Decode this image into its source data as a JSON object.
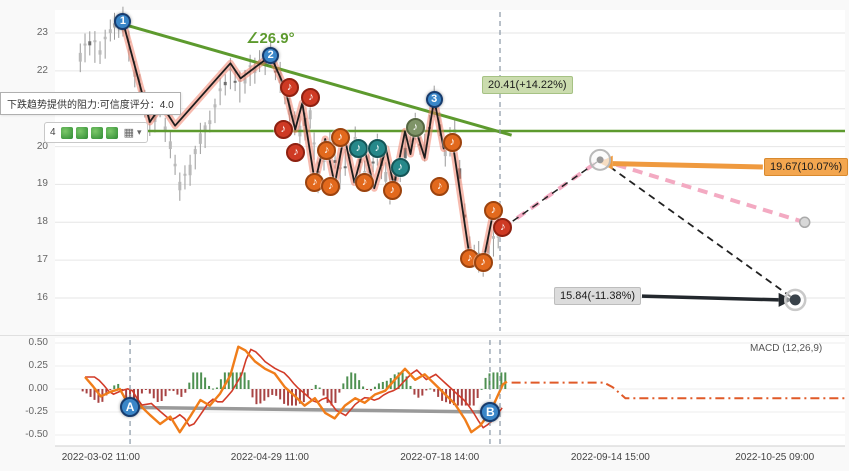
{
  "colors": {
    "green_line": "#5d9a2e",
    "zigzag_glow": "rgba(240,120,95,0.5)",
    "zigzag": "#1c1c1c",
    "forecast_pink": "#f3aac2",
    "forecast_black": "#222222",
    "orange_arrow": "#ef9a3f",
    "black_arrow": "#23282d",
    "macd_line": "#f07d1a",
    "macd_signal": "#d23b28",
    "hist_pos": "#2f7d33",
    "hist_neg": "#992222",
    "vline": "#8a97a5",
    "grid": "#e6e6e6"
  },
  "annotations": {
    "tooltip": "下跌趋势提供的阻力:可信度评分：4.0",
    "angle": "∠26.9°",
    "label_green": "20.41(+14.22%)",
    "label_orange": "19.67(10.07%)",
    "label_gray": "15.84(-11.38%)"
  },
  "toolbar": {
    "count": "4",
    "grid_glyph": "▦",
    "caret_glyph": "▾"
  },
  "icons": {
    "marker_glyph": "♪"
  },
  "chart_data": {
    "type": "candlestick+line",
    "x_axis": {
      "labels": [
        "2022-03-02 11:00",
        "2022-04-29 11:00",
        "2022-07-18 14:00",
        "2022-09-14 15:00",
        "2022-10-25 09:00"
      ],
      "fracs": [
        0.058,
        0.272,
        0.487,
        0.703,
        0.911
      ]
    },
    "price_axis": {
      "ticks": [
        23,
        22,
        21,
        20,
        19,
        18,
        17,
        16
      ],
      "range": [
        15.6,
        23.6
      ]
    },
    "main": {
      "resistance_price": 20.41,
      "trend_line": [
        [
          0.083,
          23.25
        ],
        [
          0.578,
          20.3
        ]
      ],
      "zigzag": [
        [
          0.086,
          23.3
        ],
        [
          0.12,
          20.65
        ],
        [
          0.135,
          21.1
        ],
        [
          0.152,
          20.55
        ],
        [
          0.222,
          22.2
        ],
        [
          0.235,
          21.8
        ],
        [
          0.273,
          22.4
        ],
        [
          0.291,
          21.55
        ],
        [
          0.304,
          20.45
        ],
        [
          0.313,
          21.15
        ],
        [
          0.329,
          19.05
        ],
        [
          0.342,
          20.2
        ],
        [
          0.354,
          19.0
        ],
        [
          0.366,
          20.3
        ],
        [
          0.379,
          19.05
        ],
        [
          0.391,
          20.0
        ],
        [
          0.404,
          18.9
        ],
        [
          0.419,
          19.95
        ],
        [
          0.429,
          18.95
        ],
        [
          0.443,
          20.4
        ],
        [
          0.45,
          19.8
        ],
        [
          0.456,
          20.5
        ],
        [
          0.468,
          19.7
        ],
        [
          0.48,
          21.25
        ],
        [
          0.492,
          19.95
        ],
        [
          0.503,
          20.15
        ],
        [
          0.525,
          17.05
        ],
        [
          0.542,
          16.95
        ],
        [
          0.555,
          18.3
        ],
        [
          0.567,
          17.85
        ]
      ],
      "background_path": [
        [
          0.032,
          22.4
        ],
        [
          0.044,
          22.8
        ],
        [
          0.057,
          22.5
        ],
        [
          0.07,
          23.0
        ],
        [
          0.086,
          23.3
        ],
        [
          0.101,
          22.0
        ],
        [
          0.12,
          20.6
        ],
        [
          0.133,
          21.0
        ],
        [
          0.146,
          20.0
        ],
        [
          0.158,
          19.0
        ],
        [
          0.171,
          19.4
        ],
        [
          0.184,
          20.2
        ],
        [
          0.196,
          20.6
        ],
        [
          0.209,
          21.4
        ],
        [
          0.222,
          21.9
        ],
        [
          0.234,
          21.6
        ],
        [
          0.247,
          22.0
        ],
        [
          0.259,
          22.2
        ],
        [
          0.273,
          22.4
        ],
        [
          0.285,
          21.8
        ],
        [
          0.297,
          21.0
        ],
        [
          0.31,
          20.4
        ],
        [
          0.323,
          20.8
        ],
        [
          0.333,
          19.2
        ],
        [
          0.348,
          20.0
        ],
        [
          0.361,
          19.3
        ],
        [
          0.38,
          20.1
        ],
        [
          0.392,
          19.2
        ],
        [
          0.408,
          19.9
        ],
        [
          0.424,
          18.9
        ],
        [
          0.437,
          19.5
        ],
        [
          0.456,
          20.5
        ],
        [
          0.468,
          19.9
        ],
        [
          0.48,
          21.2
        ],
        [
          0.494,
          19.9
        ],
        [
          0.506,
          20.3
        ],
        [
          0.525,
          17.2
        ],
        [
          0.542,
          17.0
        ],
        [
          0.555,
          17.5
        ],
        [
          0.567,
          18.0
        ]
      ],
      "forecast_pink": [
        [
          0.567,
          17.85
        ],
        [
          0.69,
          19.65
        ],
        [
          0.949,
          18.0
        ]
      ],
      "forecast_black": [
        [
          0.69,
          19.65
        ],
        [
          0.937,
          15.95
        ]
      ],
      "targets": {
        "mid": [
          0.69,
          19.65
        ],
        "pink_end": [
          0.949,
          18.0
        ],
        "black_end": [
          0.937,
          15.95
        ]
      },
      "vline": 0.5633,
      "arrows": {
        "orange": {
          "from_frac": 0.706,
          "to_frac": 0.896,
          "from_price": 19.55,
          "to_price": 19.46
        },
        "black": {
          "from_frac": 0.743,
          "to_frac": 0.916,
          "from_price": 16.05,
          "to_price": 15.95
        }
      },
      "markers": [
        [
          0.289,
          20.45,
          "red"
        ],
        [
          0.297,
          21.55,
          "red"
        ],
        [
          0.305,
          19.85,
          "red"
        ],
        [
          0.324,
          21.3,
          "red"
        ],
        [
          0.329,
          19.05,
          "orange"
        ],
        [
          0.344,
          19.9,
          "orange"
        ],
        [
          0.349,
          18.95,
          "orange"
        ],
        [
          0.361,
          20.25,
          "orange"
        ],
        [
          0.384,
          19.95,
          "teal"
        ],
        [
          0.392,
          19.05,
          "orange"
        ],
        [
          0.408,
          19.95,
          "teal"
        ],
        [
          0.427,
          18.85,
          "orange"
        ],
        [
          0.437,
          19.45,
          "teal"
        ],
        [
          0.456,
          20.5,
          "olive"
        ],
        [
          0.487,
          18.95,
          "orange"
        ],
        [
          0.503,
          20.1,
          "orange"
        ],
        [
          0.525,
          17.05,
          "orange"
        ],
        [
          0.542,
          16.95,
          "orange"
        ],
        [
          0.555,
          18.3,
          "orange"
        ],
        [
          0.567,
          17.85,
          "red"
        ]
      ],
      "pivots": [
        {
          "label": "1",
          "x": 0.086,
          "p": 23.3
        },
        {
          "label": "2",
          "x": 0.273,
          "p": 22.4
        },
        {
          "label": "3",
          "x": 0.48,
          "p": 21.25
        }
      ]
    },
    "macd": {
      "title": "MACD (12,26,9)",
      "ticks": [
        "0.50",
        "0.25",
        "0.00",
        "-0.25",
        "-0.50"
      ],
      "line": [
        [
          0.038,
          0.13
        ],
        [
          0.048,
          0.03
        ],
        [
          0.058,
          -0.08
        ],
        [
          0.07,
          -0.03
        ],
        [
          0.082,
          0.0
        ],
        [
          0.095,
          -0.2
        ],
        [
          0.108,
          -0.18
        ],
        [
          0.12,
          -0.28
        ],
        [
          0.133,
          -0.38
        ],
        [
          0.146,
          -0.3
        ],
        [
          0.158,
          -0.47
        ],
        [
          0.171,
          -0.3
        ],
        [
          0.184,
          -0.12
        ],
        [
          0.196,
          -0.18
        ],
        [
          0.209,
          -0.05
        ],
        [
          0.222,
          0.15
        ],
        [
          0.232,
          0.46
        ],
        [
          0.241,
          0.42
        ],
        [
          0.253,
          0.3
        ],
        [
          0.266,
          0.22
        ],
        [
          0.278,
          0.17
        ],
        [
          0.291,
          0.02
        ],
        [
          0.304,
          -0.08
        ],
        [
          0.316,
          -0.18
        ],
        [
          0.329,
          -0.1
        ],
        [
          0.342,
          -0.26
        ],
        [
          0.354,
          -0.32
        ],
        [
          0.367,
          -0.18
        ],
        [
          0.38,
          -0.1
        ],
        [
          0.392,
          -0.15
        ],
        [
          0.405,
          -0.06
        ],
        [
          0.418,
          -0.02
        ],
        [
          0.43,
          0.1
        ],
        [
          0.443,
          0.22
        ],
        [
          0.456,
          0.1
        ],
        [
          0.468,
          0.16
        ],
        [
          0.481,
          0.05
        ],
        [
          0.494,
          -0.06
        ],
        [
          0.506,
          -0.16
        ],
        [
          0.519,
          -0.33
        ],
        [
          0.527,
          -0.47
        ],
        [
          0.538,
          -0.4
        ],
        [
          0.551,
          -0.25
        ],
        [
          0.56,
          -0.08
        ],
        [
          0.567,
          0.05
        ],
        [
          0.572,
          0.08
        ]
      ],
      "forecast": [
        [
          0.578,
          0.07
        ],
        [
          0.695,
          0.07
        ],
        [
          0.706,
          0.02
        ],
        [
          0.722,
          -0.1
        ],
        [
          1.0,
          -0.1
        ]
      ],
      "trend": [
        [
          0.095,
          -0.2
        ],
        [
          0.551,
          -0.25
        ]
      ],
      "pivots": [
        {
          "label": "A",
          "x": 0.095,
          "v": -0.2
        },
        {
          "label": "B",
          "x": 0.551,
          "v": -0.25
        }
      ],
      "vlines": [
        0.095,
        0.5506,
        0.5633
      ]
    }
  }
}
